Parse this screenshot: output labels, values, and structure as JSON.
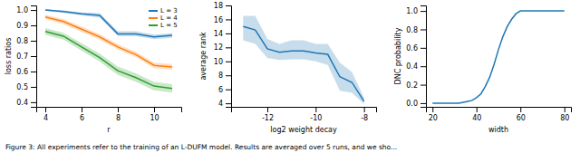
{
  "chart_data": [
    {
      "type": "line",
      "xlabel": "r",
      "ylabel": "loss ratios",
      "x": [
        4,
        5,
        6,
        7,
        8,
        9,
        10,
        11
      ],
      "series": [
        {
          "name": "L = 3",
          "values": [
            1.0,
            0.99,
            0.975,
            0.965,
            0.845,
            0.845,
            0.825,
            0.835
          ],
          "lower": [
            0.995,
            0.982,
            0.965,
            0.95,
            0.83,
            0.83,
            0.81,
            0.82
          ],
          "upper": [
            1.005,
            0.998,
            0.985,
            0.98,
            0.862,
            0.862,
            0.84,
            0.85
          ]
        },
        {
          "name": "L = 4",
          "values": [
            0.955,
            0.925,
            0.875,
            0.825,
            0.76,
            0.71,
            0.64,
            0.63
          ],
          "lower": [
            0.94,
            0.908,
            0.857,
            0.807,
            0.742,
            0.692,
            0.622,
            0.612
          ],
          "upper": [
            0.97,
            0.942,
            0.893,
            0.843,
            0.778,
            0.728,
            0.658,
            0.648
          ]
        },
        {
          "name": "L = 5",
          "values": [
            0.86,
            0.83,
            0.76,
            0.69,
            0.605,
            0.56,
            0.505,
            0.49
          ],
          "lower": [
            0.838,
            0.808,
            0.736,
            0.664,
            0.578,
            0.532,
            0.478,
            0.463
          ],
          "upper": [
            0.882,
            0.852,
            0.784,
            0.716,
            0.632,
            0.588,
            0.532,
            0.517
          ]
        }
      ],
      "xlim": [
        3.5,
        11.5
      ],
      "ylim": [
        0.37,
        1.03
      ],
      "xticks": [
        4,
        6,
        8,
        10
      ],
      "yticks": [
        0.4,
        0.5,
        0.6,
        0.7,
        0.8,
        0.9,
        {
          "value": 1.0,
          "label": "1.0"
        }
      ],
      "grid": false,
      "legend": "upper right"
    },
    {
      "type": "line",
      "xlabel": "log2 weight decay",
      "ylabel": "average rank",
      "x": [
        -13.0,
        -12.5,
        -12.0,
        -11.5,
        -11.0,
        -10.5,
        -10.0,
        -9.5,
        -9.0,
        -8.5,
        -8.0
      ],
      "values": [
        15.0,
        14.5,
        11.8,
        11.3,
        11.5,
        11.5,
        11.2,
        11.0,
        7.8,
        7.0,
        4.3
      ],
      "lower": [
        13.0,
        12.5,
        10.5,
        10.2,
        10.3,
        10.3,
        10.0,
        9.5,
        5.8,
        5.5,
        3.9
      ],
      "upper": [
        16.5,
        16.5,
        13.2,
        12.5,
        13.0,
        13.0,
        12.5,
        12.5,
        9.8,
        8.5,
        4.8
      ],
      "xlim": [
        -13.5,
        -7.5
      ],
      "ylim": [
        3.5,
        18.0
      ],
      "xticks": [
        -12,
        -10,
        -8
      ],
      "yticks": [
        4,
        6,
        8,
        10,
        12,
        14,
        16,
        18
      ],
      "grid": false
    },
    {
      "type": "line",
      "xlabel": "width",
      "ylabel": "DNC probability",
      "x": [
        20,
        22,
        24,
        26,
        28,
        30,
        32,
        34,
        36,
        38,
        40,
        42,
        44,
        46,
        48,
        50,
        52,
        54,
        56,
        58,
        60,
        62,
        64,
        68,
        72,
        76,
        80
      ],
      "values": [
        0.0,
        0.0,
        0.0,
        0.0,
        0.0,
        0.0,
        0.0,
        0.01,
        0.02,
        0.03,
        0.06,
        0.1,
        0.18,
        0.28,
        0.42,
        0.58,
        0.72,
        0.83,
        0.91,
        0.97,
        1.0,
        1.0,
        1.0,
        1.0,
        1.0,
        1.0,
        1.0
      ],
      "xlim": [
        17,
        83
      ],
      "ylim": [
        -0.04,
        1.06
      ],
      "xticks": [
        20,
        40,
        60,
        80
      ],
      "yticks": [
        {
          "value": 0.0,
          "label": "0.0"
        },
        0.2,
        0.4,
        0.6,
        0.8,
        {
          "value": 1.0,
          "label": "1.0"
        }
      ],
      "grid": false
    }
  ],
  "caption": "Figure 3: All experiments refer to the training of an L-DUFM model. Results are averaged over 5 runs, and we sho..."
}
